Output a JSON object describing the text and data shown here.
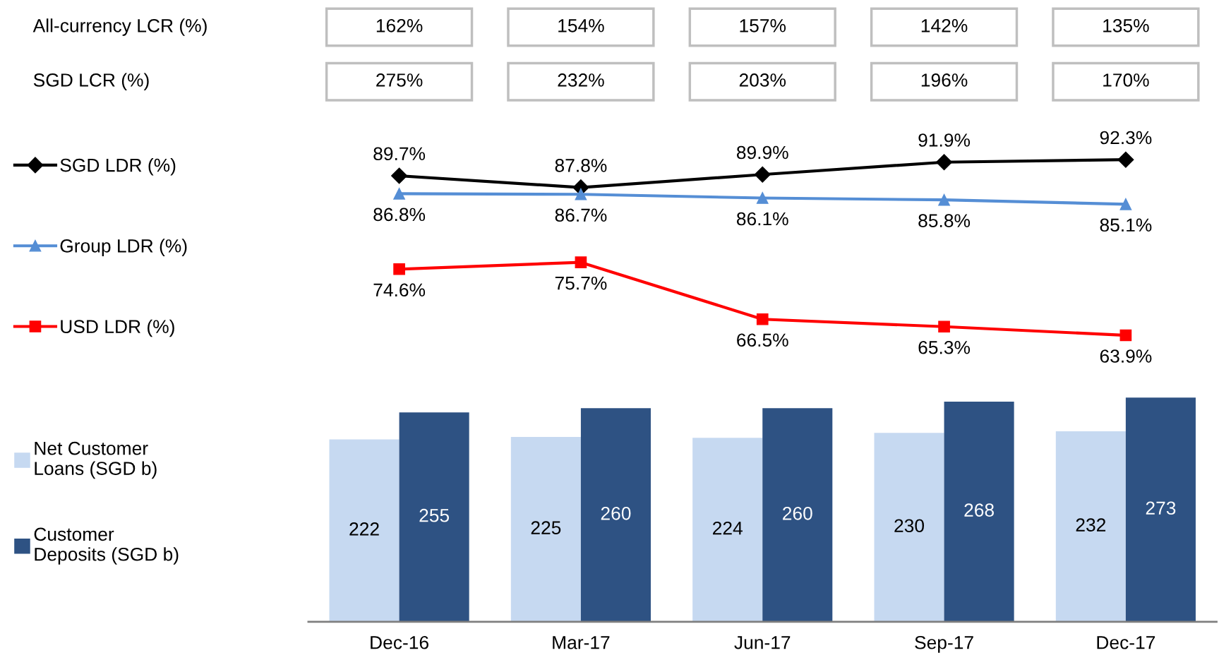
{
  "chart_data": [
    {
      "type": "other",
      "annotations": [
        "All-currency LCR (%)",
        "162%",
        "154%",
        "157%",
        "142%",
        "135%",
        "SGD LCR (%)",
        "275%",
        "232%",
        "203%",
        "196%",
        "170%"
      ]
    },
    {
      "type": "line",
      "categories": [
        null,
        null,
        null,
        null,
        null
      ],
      "tick_labels": false,
      "legend": "left",
      "series": [
        {
          "name": "SGD LDR (%)",
          "color": "#000000",
          "marker": "diamond",
          "values": [
            89.7,
            87.8,
            89.9,
            91.9,
            92.3
          ],
          "value_labels": [
            "89.7%",
            "87.8%",
            "89.9%",
            "91.9%",
            "92.3%"
          ]
        },
        {
          "name": "Group LDR (%)",
          "color": "#558ed5",
          "marker": "triangle",
          "values": [
            86.8,
            86.7,
            86.1,
            85.8,
            85.1
          ],
          "value_labels": [
            "86.8%",
            "86.7%",
            "86.1%",
            "85.8%",
            "85.1%"
          ]
        },
        {
          "name": "USD LDR (%)",
          "color": "#ff0000",
          "marker": "square",
          "values": [
            74.6,
            75.7,
            66.5,
            65.3,
            63.9
          ],
          "value_labels": [
            "74.6%",
            "75.7%",
            "66.5%",
            "65.3%",
            "63.9%"
          ]
        }
      ]
    },
    {
      "type": "bar",
      "categories": [
        "Dec-16",
        "Mar-17",
        "Jun-17",
        "Sep-17",
        "Dec-17"
      ],
      "tick_labels": "x",
      "legend": "left",
      "data_labels": true,
      "series": [
        {
          "name": "Net Customer\nLoans (SGD b)",
          "color": "#c6d9f1",
          "values": [
            222,
            225,
            224,
            230,
            232
          ]
        },
        {
          "name": "Customer\nDeposits (SGD b)",
          "color": "#2e5283",
          "values": [
            255,
            260,
            260,
            268,
            273
          ]
        }
      ]
    }
  ]
}
